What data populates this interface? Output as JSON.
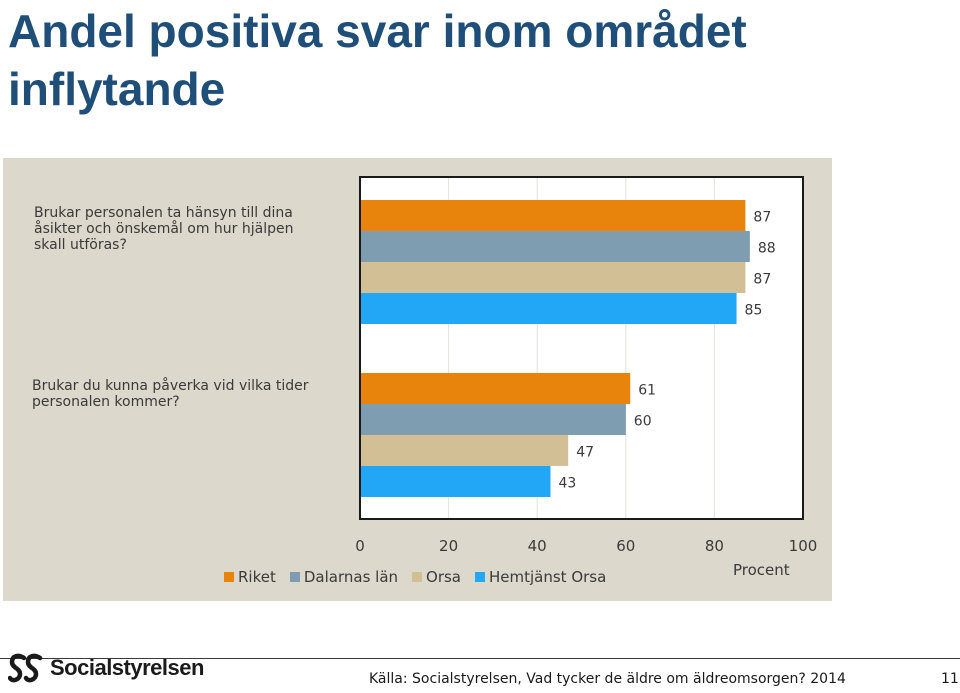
{
  "slide": {
    "title": "Andel positiva svar inom området inflytande",
    "source": "Källa: Socialstyrelsen, Vad tycker de äldre om äldreomsorgen? 2014",
    "page_number": "11",
    "logo_text": "Socialstyrelsen"
  },
  "chart_data": {
    "type": "bar",
    "orientation": "horizontal",
    "categories": [
      "Brukar personalen ta hänsyn till dina åsikter och önskemål om hur hjälpen skall utföras?",
      "Brukar du kunna påverka vid vilka tider personalen kommer?"
    ],
    "series": [
      {
        "name": "Riket",
        "color": "#e8840c",
        "values": [
          87,
          61
        ]
      },
      {
        "name": "Dalarnas län",
        "color": "#7f9db0",
        "values": [
          88,
          60
        ]
      },
      {
        "name": "Orsa",
        "color": "#d3bf95",
        "values": [
          87,
          47
        ]
      },
      {
        "name": "Hemtjänst Orsa",
        "color": "#21a7f5",
        "values": [
          85,
          43
        ]
      }
    ],
    "xlabel": "Procent",
    "xlim": [
      0,
      100
    ],
    "xticks": [
      "0",
      "20",
      "40",
      "60",
      "80",
      "100"
    ],
    "grid": true,
    "legend": "bottom"
  }
}
